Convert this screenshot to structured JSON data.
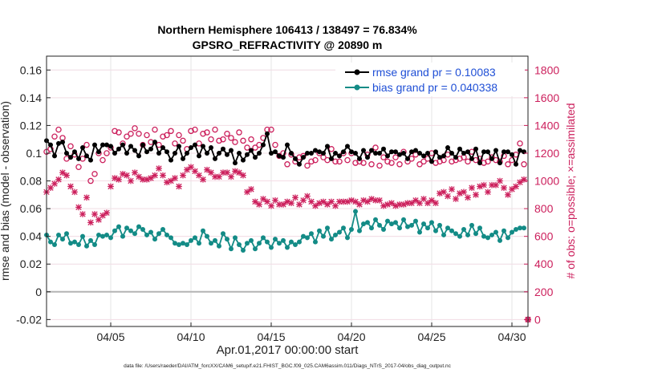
{
  "chart_data": {
    "type": "line",
    "title_line1": "Northern Hemisphere 106413 / 138497 = 76.834%",
    "title_line2": "GPSRO_REFRACTIVITY @ 20890 m",
    "xlabel": "Apr.01,2017 00:00:00 start",
    "ylabel_left": "rmse and bias (model - observation)",
    "ylabel_right": "# of obs: o=possible; ×=assimilated",
    "footer": "data file: /Users/raeder/DAI/ATM_forcXX/CAM6_setup/f.e21.FHIST_BGC.f09_025.CAM6assim.011/Diags_NTrS_2017-04/obs_diag_output.nc",
    "x_range": [
      1,
      31
    ],
    "x_ticks": [
      5,
      10,
      15,
      20,
      25,
      30
    ],
    "x_tick_labels": [
      "04/05",
      "04/10",
      "04/15",
      "04/20",
      "04/25",
      "04/30"
    ],
    "y_left_range": [
      -0.025,
      0.17
    ],
    "y_left_ticks": [
      -0.02,
      0,
      0.02,
      0.04,
      0.06,
      0.08,
      0.1,
      0.12,
      0.14,
      0.16
    ],
    "y_left_tick_labels": [
      "-0.02",
      "0",
      "0.02",
      "0.04",
      "0.06",
      "0.08",
      "0.1",
      "0.12",
      "0.14",
      "0.16"
    ],
    "y_right_range": [
      -50,
      1900
    ],
    "y_right_ticks": [
      0,
      200,
      400,
      600,
      800,
      1000,
      1200,
      1400,
      1600,
      1800
    ],
    "y_right_tick_labels": [
      "0",
      "200",
      "400",
      "600",
      "800",
      "1000",
      "1200",
      "1400",
      "1600",
      "1800"
    ],
    "zero_line": 0,
    "grid": true,
    "legend_placement": "top-right",
    "colors": {
      "rmse": "#000000",
      "bias": "#138b86",
      "obs": "#cc1f5c",
      "zero": "#b4b4b4",
      "legend_text": "#1f4fd6"
    },
    "series": [
      {
        "name": "rmse grand pr = 0.10083",
        "axis": "left",
        "x": [
          1.0,
          1.25,
          1.5,
          1.75,
          2.0,
          2.25,
          2.5,
          2.75,
          3.0,
          3.25,
          3.5,
          3.75,
          4.0,
          4.25,
          4.5,
          4.75,
          5.0,
          5.25,
          5.5,
          5.75,
          6.0,
          6.25,
          6.5,
          6.75,
          7.0,
          7.25,
          7.5,
          7.75,
          8.0,
          8.25,
          8.5,
          8.75,
          9.0,
          9.25,
          9.5,
          9.75,
          10.0,
          10.25,
          10.5,
          10.75,
          11.0,
          11.25,
          11.5,
          11.75,
          12.0,
          12.25,
          12.5,
          12.75,
          13.0,
          13.25,
          13.5,
          13.75,
          14.0,
          14.25,
          14.5,
          14.75,
          15.0,
          15.25,
          15.5,
          15.75,
          16.0,
          16.25,
          16.5,
          16.75,
          17.0,
          17.25,
          17.5,
          17.75,
          18.0,
          18.25,
          18.5,
          18.75,
          19.0,
          19.25,
          19.5,
          19.75,
          20.0,
          20.25,
          20.5,
          20.75,
          21.0,
          21.25,
          21.5,
          21.75,
          22.0,
          22.25,
          22.5,
          22.75,
          23.0,
          23.25,
          23.5,
          23.75,
          24.0,
          24.25,
          24.5,
          24.75,
          25.0,
          25.25,
          25.5,
          25.75,
          26.0,
          26.25,
          26.5,
          26.75,
          27.0,
          27.25,
          27.5,
          27.75,
          28.0,
          28.25,
          28.5,
          28.75,
          29.0,
          29.25,
          29.5,
          29.75,
          30.0,
          30.25,
          30.5,
          30.75
        ],
        "y": [
          0.109,
          0.106,
          0.098,
          0.107,
          0.108,
          0.1,
          0.097,
          0.101,
          0.096,
          0.104,
          0.098,
          0.095,
          0.106,
          0.101,
          0.106,
          0.106,
          0.105,
          0.1,
          0.103,
          0.106,
          0.1,
          0.105,
          0.102,
          0.098,
          0.106,
          0.101,
          0.103,
          0.108,
          0.1,
          0.104,
          0.101,
          0.095,
          0.1,
          0.105,
          0.096,
          0.1,
          0.104,
          0.106,
          0.098,
          0.105,
          0.1,
          0.104,
          0.096,
          0.1,
          0.103,
          0.099,
          0.102,
          0.093,
          0.1,
          0.095,
          0.099,
          0.102,
          0.097,
          0.1,
          0.106,
          0.114,
          0.1,
          0.101,
          0.098,
          0.097,
          0.106,
          0.1,
          0.096,
          0.092,
          0.097,
          0.1,
          0.1,
          0.102,
          0.101,
          0.1,
          0.105,
          0.096,
          0.1,
          0.098,
          0.101,
          0.105,
          0.101,
          0.1,
          0.096,
          0.102,
          0.097,
          0.102,
          0.1,
          0.1,
          0.103,
          0.098,
          0.101,
          0.101,
          0.099,
          0.1,
          0.096,
          0.101,
          0.102,
          0.1,
          0.098,
          0.1,
          0.094,
          0.101,
          0.097,
          0.098,
          0.104,
          0.1,
          0.097,
          0.103,
          0.1,
          0.101,
          0.096,
          0.103,
          0.093,
          0.101,
          0.101,
          0.096,
          0.102,
          0.093,
          0.101,
          0.101,
          0.099,
          0.092,
          0.102,
          0.101
        ]
      },
      {
        "name": "bias grand pr = 0.040338",
        "axis": "left",
        "x": [
          1.0,
          1.25,
          1.5,
          1.75,
          2.0,
          2.25,
          2.5,
          2.75,
          3.0,
          3.25,
          3.5,
          3.75,
          4.0,
          4.25,
          4.5,
          4.75,
          5.0,
          5.25,
          5.5,
          5.75,
          6.0,
          6.25,
          6.5,
          6.75,
          7.0,
          7.25,
          7.5,
          7.75,
          8.0,
          8.25,
          8.5,
          8.75,
          9.0,
          9.25,
          9.5,
          9.75,
          10.0,
          10.25,
          10.5,
          10.75,
          11.0,
          11.25,
          11.5,
          11.75,
          12.0,
          12.25,
          12.5,
          12.75,
          13.0,
          13.25,
          13.5,
          13.75,
          14.0,
          14.25,
          14.5,
          14.75,
          15.0,
          15.25,
          15.5,
          15.75,
          16.0,
          16.25,
          16.5,
          16.75,
          17.0,
          17.25,
          17.5,
          17.75,
          18.0,
          18.25,
          18.5,
          18.75,
          19.0,
          19.25,
          19.5,
          19.75,
          20.0,
          20.25,
          20.5,
          20.75,
          21.0,
          21.25,
          21.5,
          21.75,
          22.0,
          22.25,
          22.5,
          22.75,
          23.0,
          23.25,
          23.5,
          23.75,
          24.0,
          24.25,
          24.5,
          24.75,
          25.0,
          25.25,
          25.5,
          25.75,
          26.0,
          26.25,
          26.5,
          26.75,
          27.0,
          27.25,
          27.5,
          27.75,
          28.0,
          28.25,
          28.5,
          28.75,
          29.0,
          29.25,
          29.5,
          29.75,
          30.0,
          30.25,
          30.5,
          30.75
        ],
        "y": [
          0.041,
          0.036,
          0.034,
          0.041,
          0.038,
          0.042,
          0.035,
          0.036,
          0.034,
          0.04,
          0.033,
          0.037,
          0.034,
          0.041,
          0.04,
          0.041,
          0.039,
          0.044,
          0.047,
          0.04,
          0.046,
          0.044,
          0.042,
          0.047,
          0.045,
          0.041,
          0.043,
          0.038,
          0.042,
          0.045,
          0.041,
          0.039,
          0.035,
          0.034,
          0.035,
          0.034,
          0.037,
          0.039,
          0.035,
          0.044,
          0.04,
          0.035,
          0.037,
          0.033,
          0.042,
          0.038,
          0.031,
          0.039,
          0.034,
          0.03,
          0.035,
          0.037,
          0.031,
          0.035,
          0.039,
          0.036,
          0.032,
          0.038,
          0.035,
          0.037,
          0.032,
          0.036,
          0.034,
          0.036,
          0.04,
          0.039,
          0.042,
          0.036,
          0.044,
          0.04,
          0.046,
          0.038,
          0.041,
          0.043,
          0.046,
          0.039,
          0.045,
          0.058,
          0.044,
          0.049,
          0.05,
          0.046,
          0.052,
          0.048,
          0.045,
          0.051,
          0.049,
          0.05,
          0.046,
          0.052,
          0.047,
          0.048,
          0.051,
          0.043,
          0.049,
          0.046,
          0.05,
          0.044,
          0.048,
          0.041,
          0.046,
          0.044,
          0.042,
          0.04,
          0.045,
          0.041,
          0.048,
          0.042,
          0.046,
          0.04,
          0.039,
          0.041,
          0.043,
          0.037,
          0.044,
          0.039,
          0.043,
          0.045,
          0.046,
          0.046
        ]
      },
      {
        "name": "possible",
        "axis": "right",
        "marker": "o",
        "x": [
          1.0,
          1.25,
          1.5,
          1.75,
          2.0,
          2.25,
          2.5,
          2.75,
          3.0,
          3.25,
          3.5,
          3.75,
          4.0,
          4.25,
          4.5,
          4.75,
          5.0,
          5.25,
          5.5,
          5.75,
          6.0,
          6.25,
          6.5,
          6.75,
          7.0,
          7.25,
          7.5,
          7.75,
          8.0,
          8.25,
          8.5,
          8.75,
          9.0,
          9.25,
          9.5,
          9.75,
          10.0,
          10.25,
          10.5,
          10.75,
          11.0,
          11.25,
          11.5,
          11.75,
          12.0,
          12.25,
          12.5,
          12.75,
          13.0,
          13.25,
          13.5,
          13.75,
          14.0,
          14.25,
          14.5,
          14.75,
          15.0,
          15.25,
          15.5,
          15.75,
          16.0,
          16.25,
          16.5,
          16.75,
          17.0,
          17.25,
          17.5,
          17.75,
          18.0,
          18.25,
          18.5,
          18.75,
          19.0,
          19.25,
          19.5,
          19.75,
          20.0,
          20.25,
          20.5,
          20.75,
          21.0,
          21.25,
          21.5,
          21.75,
          22.0,
          22.25,
          22.5,
          22.75,
          23.0,
          23.25,
          23.5,
          23.75,
          24.0,
          24.25,
          24.5,
          24.75,
          25.0,
          25.25,
          25.5,
          25.75,
          26.0,
          26.25,
          26.5,
          26.75,
          27.0,
          27.25,
          27.5,
          27.75,
          28.0,
          28.25,
          28.5,
          28.75,
          29.0,
          29.25,
          29.5,
          29.75,
          30.0,
          30.25,
          30.5,
          30.75
        ],
        "y": [
          1210,
          1230,
          1320,
          1370,
          1310,
          1160,
          1250,
          1190,
          1100,
          1160,
          1260,
          1000,
          1050,
          1200,
          1150,
          1200,
          1240,
          1360,
          1350,
          1270,
          1320,
          1340,
          1380,
          1340,
          1260,
          1330,
          1280,
          1370,
          1260,
          1320,
          1330,
          1360,
          1270,
          1330,
          1290,
          1230,
          1360,
          1370,
          1270,
          1340,
          1350,
          1300,
          1370,
          1290,
          1300,
          1340,
          1310,
          1280,
          1350,
          1290,
          1240,
          1300,
          1240,
          1260,
          1310,
          1370,
          1370,
          1260,
          1180,
          1200,
          1120,
          1190,
          1140,
          1170,
          1180,
          1110,
          1140,
          1150,
          1200,
          1170,
          1150,
          1230,
          1140,
          1140,
          1200,
          1150,
          1200,
          1130,
          1140,
          1130,
          1190,
          1120,
          1240,
          1110,
          1170,
          1140,
          1130,
          1170,
          1120,
          1210,
          1140,
          1160,
          1190,
          1120,
          1140,
          1160,
          1200,
          1130,
          1140,
          1150,
          1190,
          1140,
          1150,
          1160,
          1170,
          1140,
          1210,
          1150,
          1160,
          1130,
          1140,
          1170,
          1150,
          1140,
          1180,
          1120,
          1150,
          1190,
          1270,
          1120
        ]
      },
      {
        "name": "assimilated",
        "axis": "right",
        "marker": "x",
        "x": [
          1.0,
          1.25,
          1.5,
          1.75,
          2.0,
          2.25,
          2.5,
          2.75,
          3.0,
          3.25,
          3.5,
          3.75,
          4.0,
          4.25,
          4.5,
          4.75,
          5.0,
          5.25,
          5.5,
          5.75,
          6.0,
          6.25,
          6.5,
          6.75,
          7.0,
          7.25,
          7.5,
          7.75,
          8.0,
          8.25,
          8.5,
          8.75,
          9.0,
          9.25,
          9.5,
          9.75,
          10.0,
          10.25,
          10.5,
          10.75,
          11.0,
          11.25,
          11.5,
          11.75,
          12.0,
          12.25,
          12.5,
          12.75,
          13.0,
          13.25,
          13.5,
          13.75,
          14.0,
          14.25,
          14.5,
          14.75,
          15.0,
          15.25,
          15.5,
          15.75,
          16.0,
          16.25,
          16.5,
          16.75,
          17.0,
          17.25,
          17.5,
          17.75,
          18.0,
          18.25,
          18.5,
          18.75,
          19.0,
          19.25,
          19.5,
          19.75,
          20.0,
          20.25,
          20.5,
          20.75,
          21.0,
          21.25,
          21.5,
          21.75,
          22.0,
          22.25,
          22.5,
          22.75,
          23.0,
          23.25,
          23.5,
          23.75,
          24.0,
          24.25,
          24.5,
          24.75,
          25.0,
          25.25,
          25.5,
          25.75,
          26.0,
          26.25,
          26.5,
          26.75,
          27.0,
          27.25,
          27.5,
          27.75,
          28.0,
          28.25,
          28.5,
          28.75,
          29.0,
          29.25,
          29.5,
          29.75,
          30.0,
          30.25,
          30.5,
          30.75
        ],
        "y": [
          920,
          950,
          980,
          1010,
          1060,
          1040,
          960,
          920,
          810,
          760,
          880,
          700,
          760,
          720,
          750,
          770,
          960,
          1020,
          1010,
          1050,
          1040,
          1000,
          1060,
          1030,
          1010,
          1010,
          1020,
          1040,
          1090,
          1040,
          990,
          1000,
          1020,
          960,
          1040,
          1080,
          1100,
          1070,
          1040,
          1010,
          1080,
          1060,
          1030,
          1030,
          1060,
          1060,
          1030,
          1070,
          1060,
          1040,
          920,
          940,
          850,
          830,
          870,
          850,
          820,
          860,
          830,
          830,
          850,
          840,
          880,
          830,
          860,
          890,
          850,
          820,
          840,
          850,
          830,
          850,
          820,
          850,
          850,
          850,
          860,
          850,
          830,
          860,
          850,
          870,
          860,
          860,
          820,
          830,
          840,
          820,
          830,
          830,
          840,
          840,
          860,
          840,
          870,
          840,
          860,
          840,
          910,
          920,
          890,
          940,
          870,
          910,
          920,
          880,
          950,
          900,
          960,
          970,
          920,
          970,
          970,
          1000,
          950,
          900,
          940,
          960,
          990,
          1010
        ]
      }
    ],
    "extra_points": [
      {
        "name": "final-possible",
        "x": 31.0,
        "y": 0,
        "marker": "o"
      },
      {
        "name": "final-assimilated",
        "x": 31.0,
        "y": 0,
        "marker": "x"
      }
    ]
  }
}
